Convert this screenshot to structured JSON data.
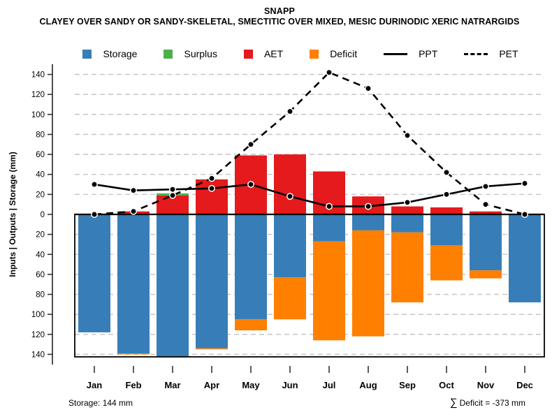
{
  "header": {
    "title": "SNAPP",
    "subtitle": "CLAYEY OVER SANDY OR SANDY-SKELETAL, SMECTITIC OVER MIXED, MESIC DURINODIC XERIC NATRARGIDS"
  },
  "colors": {
    "storage": "#377EB8",
    "surplus": "#4DAF4A",
    "aet": "#E41A1C",
    "deficit": "#FF7F00",
    "line": "#000000",
    "grid": "#C9C9C9"
  },
  "legend": {
    "items": [
      {
        "key": "storage",
        "label": "Storage",
        "type": "box"
      },
      {
        "key": "surplus",
        "label": "Surplus",
        "type": "box"
      },
      {
        "key": "aet",
        "label": "AET",
        "type": "box"
      },
      {
        "key": "deficit",
        "label": "Deficit",
        "type": "box"
      },
      {
        "key": "ppt",
        "label": "PPT",
        "type": "line-solid"
      },
      {
        "key": "pet",
        "label": "PET",
        "type": "line-dashed"
      }
    ]
  },
  "chart_data": {
    "type": "combo-bar-line",
    "title": "SNAPP",
    "categories": [
      "Jan",
      "Feb",
      "Mar",
      "Apr",
      "May",
      "Jun",
      "Jul",
      "Aug",
      "Sep",
      "Oct",
      "Nov",
      "Dec"
    ],
    "series": [
      {
        "name": "AET",
        "type": "bar",
        "direction": "up",
        "values": [
          0,
          3,
          19,
          35,
          59,
          60,
          43,
          18,
          8,
          7,
          3,
          0
        ]
      },
      {
        "name": "Surplus",
        "type": "bar",
        "direction": "up",
        "stacked_on": "AET",
        "values": [
          0,
          0,
          2,
          0,
          0,
          0,
          0,
          0,
          0,
          0,
          0,
          0
        ]
      },
      {
        "name": "Storage",
        "type": "bar",
        "direction": "down",
        "values": [
          118,
          139,
          144,
          134,
          105,
          63,
          27,
          16,
          18,
          31,
          56,
          88
        ]
      },
      {
        "name": "Deficit",
        "type": "bar",
        "direction": "down",
        "stacked_on": "Storage",
        "values": [
          0,
          1,
          0,
          1,
          11,
          42,
          99,
          106,
          70,
          35,
          8,
          0
        ]
      },
      {
        "name": "PPT",
        "type": "line",
        "style": "solid",
        "values": [
          30,
          24,
          25,
          26,
          30,
          18,
          8,
          8,
          12,
          20,
          28,
          31
        ]
      },
      {
        "name": "PET",
        "type": "line",
        "style": "dashed",
        "values": [
          0,
          3,
          19,
          36,
          70,
          103,
          142,
          126,
          79,
          42,
          10,
          0
        ]
      }
    ],
    "ylabel": "Inputs | Outputs | Storage    (mm)",
    "xlabel": "",
    "ylim": [
      -144,
      150
    ],
    "ytick_step": 20,
    "ytick_max": 140,
    "ytick_labels_absolute": true,
    "grid": true,
    "legend_position": "top"
  },
  "footers": {
    "left": "Storage: 144 mm",
    "right_sigma": "∑",
    "right": "Deficit = -373 mm"
  }
}
